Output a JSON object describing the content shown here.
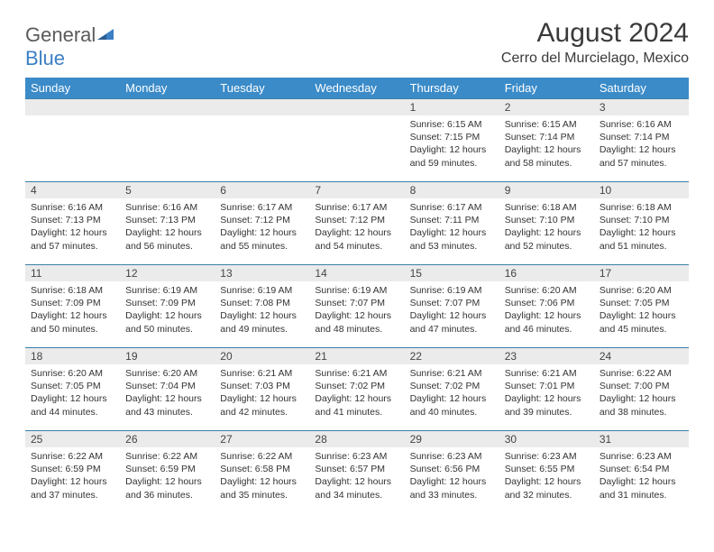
{
  "logo": {
    "text_a": "General",
    "text_b": "Blue"
  },
  "title": "August 2024",
  "location": "Cerro del Murcielago, Mexico",
  "colors": {
    "header_bg": "#3b8bc9",
    "header_text": "#ffffff",
    "border": "#3b7fa8",
    "daynum_bg": "#ebebeb",
    "body_text": "#333333",
    "logo_gray": "#5a5a5a",
    "logo_blue": "#3b7fc4"
  },
  "day_names": [
    "Sunday",
    "Monday",
    "Tuesday",
    "Wednesday",
    "Thursday",
    "Friday",
    "Saturday"
  ],
  "weeks": [
    [
      null,
      null,
      null,
      null,
      {
        "n": "1",
        "sunrise": "6:15 AM",
        "sunset": "7:15 PM",
        "daylight": "12 hours and 59 minutes."
      },
      {
        "n": "2",
        "sunrise": "6:15 AM",
        "sunset": "7:14 PM",
        "daylight": "12 hours and 58 minutes."
      },
      {
        "n": "3",
        "sunrise": "6:16 AM",
        "sunset": "7:14 PM",
        "daylight": "12 hours and 57 minutes."
      }
    ],
    [
      {
        "n": "4",
        "sunrise": "6:16 AM",
        "sunset": "7:13 PM",
        "daylight": "12 hours and 57 minutes."
      },
      {
        "n": "5",
        "sunrise": "6:16 AM",
        "sunset": "7:13 PM",
        "daylight": "12 hours and 56 minutes."
      },
      {
        "n": "6",
        "sunrise": "6:17 AM",
        "sunset": "7:12 PM",
        "daylight": "12 hours and 55 minutes."
      },
      {
        "n": "7",
        "sunrise": "6:17 AM",
        "sunset": "7:12 PM",
        "daylight": "12 hours and 54 minutes."
      },
      {
        "n": "8",
        "sunrise": "6:17 AM",
        "sunset": "7:11 PM",
        "daylight": "12 hours and 53 minutes."
      },
      {
        "n": "9",
        "sunrise": "6:18 AM",
        "sunset": "7:10 PM",
        "daylight": "12 hours and 52 minutes."
      },
      {
        "n": "10",
        "sunrise": "6:18 AM",
        "sunset": "7:10 PM",
        "daylight": "12 hours and 51 minutes."
      }
    ],
    [
      {
        "n": "11",
        "sunrise": "6:18 AM",
        "sunset": "7:09 PM",
        "daylight": "12 hours and 50 minutes."
      },
      {
        "n": "12",
        "sunrise": "6:19 AM",
        "sunset": "7:09 PM",
        "daylight": "12 hours and 50 minutes."
      },
      {
        "n": "13",
        "sunrise": "6:19 AM",
        "sunset": "7:08 PM",
        "daylight": "12 hours and 49 minutes."
      },
      {
        "n": "14",
        "sunrise": "6:19 AM",
        "sunset": "7:07 PM",
        "daylight": "12 hours and 48 minutes."
      },
      {
        "n": "15",
        "sunrise": "6:19 AM",
        "sunset": "7:07 PM",
        "daylight": "12 hours and 47 minutes."
      },
      {
        "n": "16",
        "sunrise": "6:20 AM",
        "sunset": "7:06 PM",
        "daylight": "12 hours and 46 minutes."
      },
      {
        "n": "17",
        "sunrise": "6:20 AM",
        "sunset": "7:05 PM",
        "daylight": "12 hours and 45 minutes."
      }
    ],
    [
      {
        "n": "18",
        "sunrise": "6:20 AM",
        "sunset": "7:05 PM",
        "daylight": "12 hours and 44 minutes."
      },
      {
        "n": "19",
        "sunrise": "6:20 AM",
        "sunset": "7:04 PM",
        "daylight": "12 hours and 43 minutes."
      },
      {
        "n": "20",
        "sunrise": "6:21 AM",
        "sunset": "7:03 PM",
        "daylight": "12 hours and 42 minutes."
      },
      {
        "n": "21",
        "sunrise": "6:21 AM",
        "sunset": "7:02 PM",
        "daylight": "12 hours and 41 minutes."
      },
      {
        "n": "22",
        "sunrise": "6:21 AM",
        "sunset": "7:02 PM",
        "daylight": "12 hours and 40 minutes."
      },
      {
        "n": "23",
        "sunrise": "6:21 AM",
        "sunset": "7:01 PM",
        "daylight": "12 hours and 39 minutes."
      },
      {
        "n": "24",
        "sunrise": "6:22 AM",
        "sunset": "7:00 PM",
        "daylight": "12 hours and 38 minutes."
      }
    ],
    [
      {
        "n": "25",
        "sunrise": "6:22 AM",
        "sunset": "6:59 PM",
        "daylight": "12 hours and 37 minutes."
      },
      {
        "n": "26",
        "sunrise": "6:22 AM",
        "sunset": "6:59 PM",
        "daylight": "12 hours and 36 minutes."
      },
      {
        "n": "27",
        "sunrise": "6:22 AM",
        "sunset": "6:58 PM",
        "daylight": "12 hours and 35 minutes."
      },
      {
        "n": "28",
        "sunrise": "6:23 AM",
        "sunset": "6:57 PM",
        "daylight": "12 hours and 34 minutes."
      },
      {
        "n": "29",
        "sunrise": "6:23 AM",
        "sunset": "6:56 PM",
        "daylight": "12 hours and 33 minutes."
      },
      {
        "n": "30",
        "sunrise": "6:23 AM",
        "sunset": "6:55 PM",
        "daylight": "12 hours and 32 minutes."
      },
      {
        "n": "31",
        "sunrise": "6:23 AM",
        "sunset": "6:54 PM",
        "daylight": "12 hours and 31 minutes."
      }
    ]
  ],
  "labels": {
    "sunrise": "Sunrise: ",
    "sunset": "Sunset: ",
    "daylight": "Daylight: "
  }
}
